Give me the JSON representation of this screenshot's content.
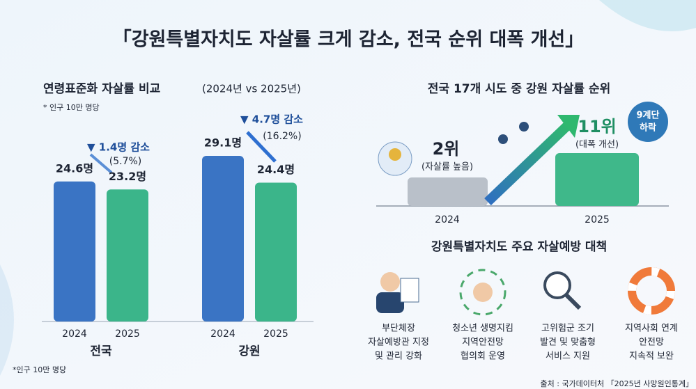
{
  "title": "「강원특별자치도 자살률 크게 감소, 전국 순위 대폭 개선」",
  "chart_data": {
    "type": "bar",
    "title": "연령표준화 자살률 비교",
    "subtitle": "(2024년 vs 2025년)",
    "note": "* 인구 10만 명당",
    "footnote": "*인구 10만 명당",
    "categories": [
      "전국",
      "강원"
    ],
    "series": [
      {
        "name": "2024",
        "color": "#3a74c4",
        "values": [
          24.6,
          29.1
        ],
        "value_labels": [
          "24.6명",
          "29.1명"
        ]
      },
      {
        "name": "2025",
        "color": "#3bb58a",
        "values": [
          23.2,
          24.4
        ],
        "value_labels": [
          "23.2명",
          "24.4명"
        ]
      }
    ],
    "annotations": [
      {
        "text": "▼ 1.4명 감소",
        "detail": "(5.7%)"
      },
      {
        "text": "▼ 4.7명 감소",
        "detail": "(16.2%)"
      }
    ]
  },
  "ranking": {
    "title": "전국 17개 시도 중 강원 자살률 순위",
    "items": [
      {
        "rank": "2위",
        "note": "(자살률 높음)",
        "year": "2024"
      },
      {
        "rank": "11위",
        "note": "(대폭 개선)",
        "year": "2025"
      }
    ],
    "badge": [
      "9계단",
      "하락"
    ]
  },
  "policies": {
    "title": "강원특별자치도 주요 자살예방 대책",
    "items": [
      [
        "부단체장",
        "자살예방관 지정",
        "및 관리 강화"
      ],
      [
        "청소년 생명지킴",
        "지역안전망",
        "협의회 운영"
      ],
      [
        "고위험군 조기",
        "발견 및 맞춤형",
        "서비스 지원"
      ],
      [
        "지역사회 연계",
        "안전망",
        "지속적 보완"
      ]
    ]
  },
  "source": "출처 : 국가데이터처 「2025년 사망원인통계」"
}
